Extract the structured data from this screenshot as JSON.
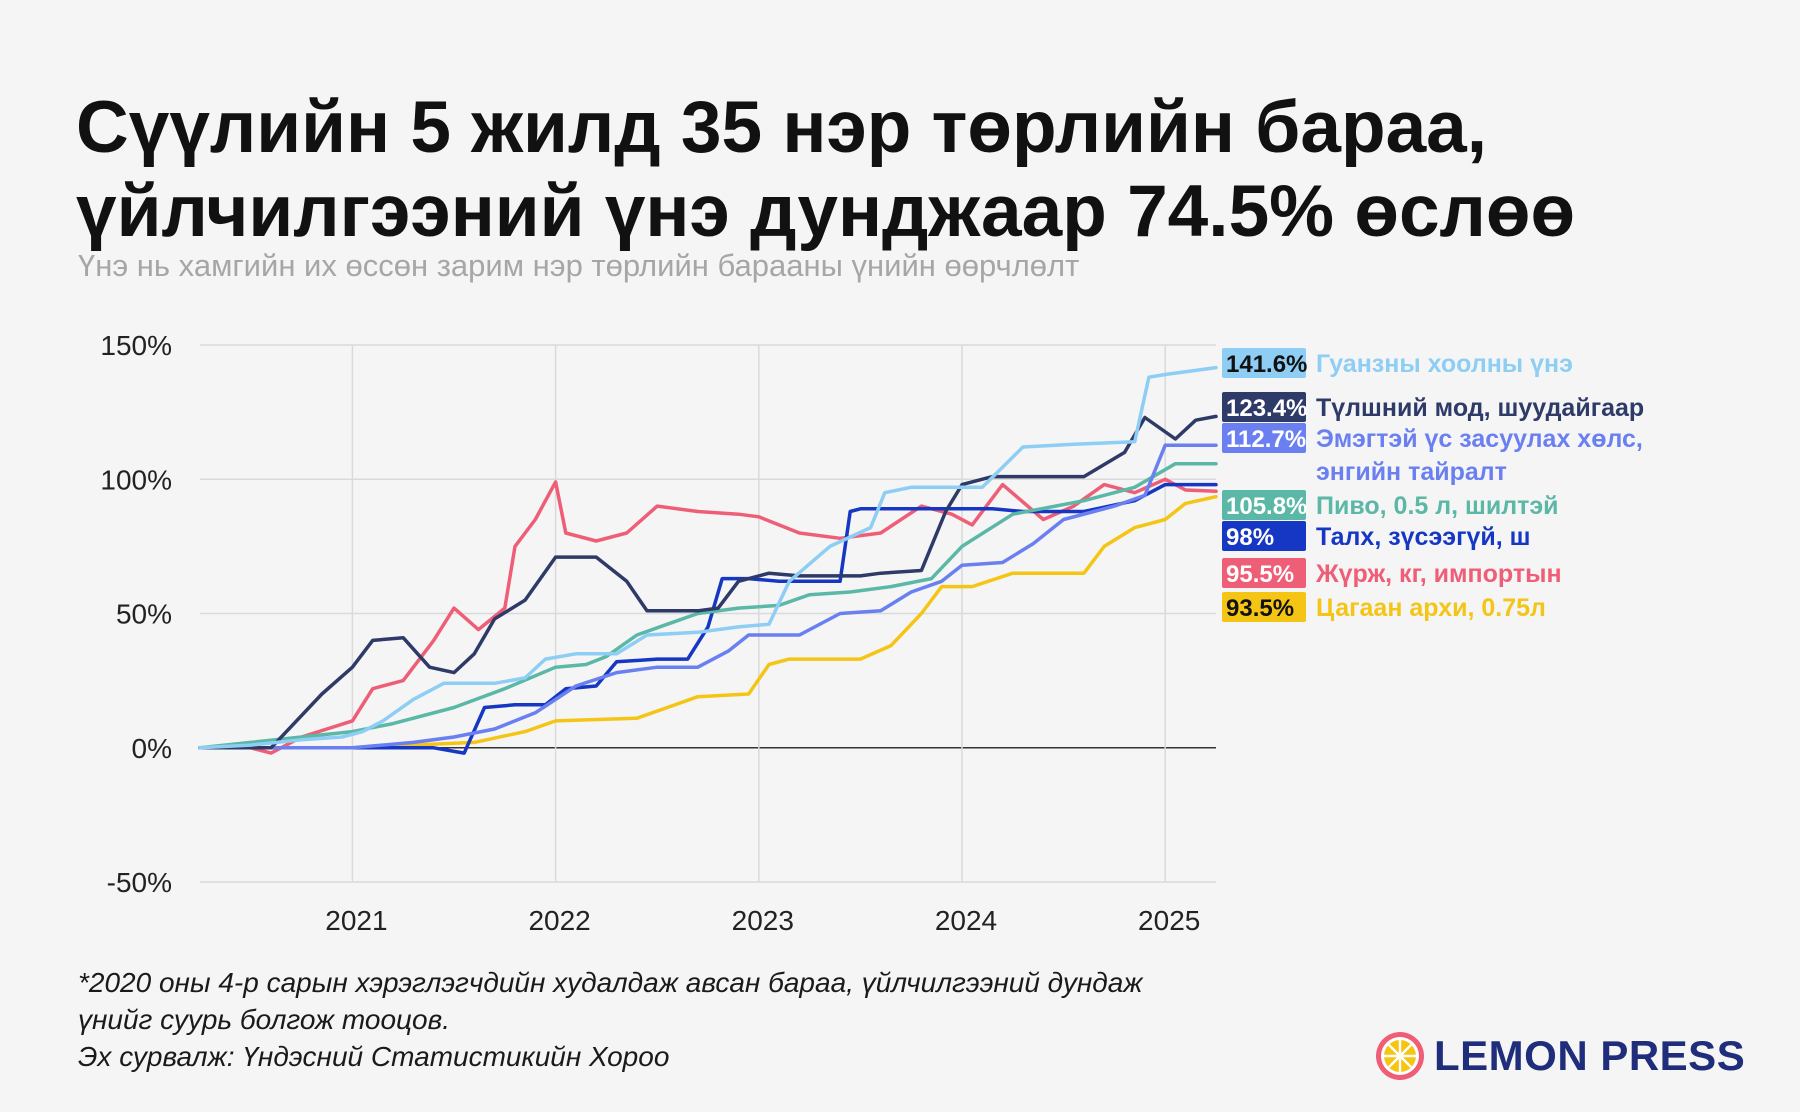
{
  "title_line1": "Сүүлийн 5 жилд 35 нэр төрлийн бараа,",
  "title_line2": "үйлчилгээний үнэ дунджаар 74.5% өслөө",
  "subtitle": "Үнэ нь хамгийн их өссөн зарим нэр төрлийн барааны үнийн өөрчлөлт",
  "footnote_line1": "*2020 оны 4-р сарын хэрэглэгчдийн худалдаж авсан бараа, үйлчилгээний дундаж",
  "footnote_line2": "үнийг суурь болгож тооцов.",
  "source": "Эх сурвалж: Үндэсний Статистикийн Хороо",
  "logo_text": "LEMON PRESS",
  "chart_data": {
    "type": "line",
    "title": "",
    "xlabel": "",
    "ylabel": "",
    "xlim": [
      2020.25,
      2025.25
    ],
    "ylim": [
      -50,
      150
    ],
    "y_ticks": [
      150,
      100,
      50,
      0,
      -50
    ],
    "y_tick_labels": [
      "150%",
      "100%",
      "50%",
      "0%",
      "-50%"
    ],
    "x_ticks": [
      2021,
      2022,
      2023,
      2024,
      2025
    ],
    "x_tick_labels": [
      "2021",
      "2022",
      "2023",
      "2024",
      "2025"
    ],
    "grid": true,
    "legend": "right, end-of-line labels",
    "series": [
      {
        "name": "Гуанзны хоолны үнэ",
        "end_label": "141.6%",
        "color": "#8ecdf4",
        "points": [
          [
            2020.25,
            0
          ],
          [
            2020.5,
            1
          ],
          [
            2020.75,
            3
          ],
          [
            2020.95,
            4
          ],
          [
            2021.05,
            6
          ],
          [
            2021.15,
            10
          ],
          [
            2021.3,
            18
          ],
          [
            2021.45,
            24
          ],
          [
            2021.7,
            24
          ],
          [
            2021.85,
            26
          ],
          [
            2021.95,
            33
          ],
          [
            2022.1,
            35
          ],
          [
            2022.3,
            35
          ],
          [
            2022.45,
            42
          ],
          [
            2022.7,
            43
          ],
          [
            2022.9,
            45
          ],
          [
            2023.05,
            46
          ],
          [
            2023.15,
            62
          ],
          [
            2023.35,
            75
          ],
          [
            2023.55,
            82
          ],
          [
            2023.62,
            95
          ],
          [
            2023.75,
            97
          ],
          [
            2024.1,
            97
          ],
          [
            2024.3,
            112
          ],
          [
            2024.55,
            113
          ],
          [
            2024.85,
            114
          ],
          [
            2024.92,
            138
          ],
          [
            2025.0,
            139
          ],
          [
            2025.25,
            141.6
          ]
        ]
      },
      {
        "name": "Түлшний мод, шуудайгаар",
        "end_label": "123.4%",
        "color": "#2e3a67",
        "points": [
          [
            2020.25,
            0
          ],
          [
            2020.6,
            0
          ],
          [
            2020.7,
            8
          ],
          [
            2020.85,
            20
          ],
          [
            2021.0,
            30
          ],
          [
            2021.1,
            40
          ],
          [
            2021.25,
            41
          ],
          [
            2021.38,
            30
          ],
          [
            2021.5,
            28
          ],
          [
            2021.6,
            35
          ],
          [
            2021.7,
            48
          ],
          [
            2021.85,
            55
          ],
          [
            2022.0,
            71
          ],
          [
            2022.2,
            71
          ],
          [
            2022.35,
            62
          ],
          [
            2022.45,
            51
          ],
          [
            2022.7,
            51
          ],
          [
            2022.8,
            52
          ],
          [
            2022.9,
            62
          ],
          [
            2023.05,
            65
          ],
          [
            2023.2,
            64
          ],
          [
            2023.5,
            64
          ],
          [
            2023.6,
            65
          ],
          [
            2023.8,
            66
          ],
          [
            2023.92,
            88
          ],
          [
            2024.0,
            98
          ],
          [
            2024.15,
            101
          ],
          [
            2024.6,
            101
          ],
          [
            2024.8,
            110
          ],
          [
            2024.9,
            123
          ],
          [
            2025.05,
            115
          ],
          [
            2025.15,
            122
          ],
          [
            2025.25,
            123.4
          ]
        ]
      },
      {
        "name": "Эмэгтэй үс засуулах хөлс, энгийн тайралт",
        "end_label": "112.7%",
        "color": "#6a7ff0",
        "points": [
          [
            2020.25,
            0
          ],
          [
            2021.0,
            0
          ],
          [
            2021.3,
            2
          ],
          [
            2021.5,
            4
          ],
          [
            2021.7,
            7
          ],
          [
            2021.9,
            13
          ],
          [
            2022.1,
            23
          ],
          [
            2022.3,
            28
          ],
          [
            2022.5,
            30
          ],
          [
            2022.7,
            30
          ],
          [
            2022.85,
            36
          ],
          [
            2022.95,
            42
          ],
          [
            2023.2,
            42
          ],
          [
            2023.4,
            50
          ],
          [
            2023.6,
            51
          ],
          [
            2023.75,
            58
          ],
          [
            2023.9,
            62
          ],
          [
            2024.0,
            68
          ],
          [
            2024.2,
            69
          ],
          [
            2024.35,
            76
          ],
          [
            2024.5,
            85
          ],
          [
            2024.75,
            90
          ],
          [
            2024.9,
            94
          ],
          [
            2025.0,
            112.7
          ],
          [
            2025.25,
            112.7
          ]
        ]
      },
      {
        "name": "Пиво, 0.5 л, шилтэй",
        "end_label": "105.8%",
        "color": "#5bb8a6",
        "points": [
          [
            2020.25,
            0
          ],
          [
            2020.5,
            2
          ],
          [
            2020.75,
            4
          ],
          [
            2021.0,
            6
          ],
          [
            2021.2,
            9
          ],
          [
            2021.5,
            15
          ],
          [
            2021.75,
            22
          ],
          [
            2022.0,
            30
          ],
          [
            2022.15,
            31
          ],
          [
            2022.25,
            34
          ],
          [
            2022.4,
            42
          ],
          [
            2022.55,
            46
          ],
          [
            2022.7,
            50
          ],
          [
            2022.9,
            52
          ],
          [
            2023.1,
            53
          ],
          [
            2023.25,
            57
          ],
          [
            2023.45,
            58
          ],
          [
            2023.65,
            60
          ],
          [
            2023.85,
            63
          ],
          [
            2024.0,
            75
          ],
          [
            2024.25,
            87
          ],
          [
            2024.6,
            92
          ],
          [
            2024.85,
            97
          ],
          [
            2025.05,
            105.8
          ],
          [
            2025.25,
            105.8
          ]
        ]
      },
      {
        "name": "Талх, зүсээгүй, ш",
        "end_label": "98%",
        "color": "#1537c4",
        "points": [
          [
            2020.25,
            0
          ],
          [
            2021.0,
            0
          ],
          [
            2021.4,
            0
          ],
          [
            2021.55,
            -2
          ],
          [
            2021.65,
            15
          ],
          [
            2021.8,
            16
          ],
          [
            2021.95,
            16
          ],
          [
            2022.05,
            22
          ],
          [
            2022.2,
            23
          ],
          [
            2022.3,
            32
          ],
          [
            2022.5,
            33
          ],
          [
            2022.65,
            33
          ],
          [
            2022.75,
            45
          ],
          [
            2022.82,
            63
          ],
          [
            2022.95,
            63
          ],
          [
            2023.1,
            62
          ],
          [
            2023.4,
            62
          ],
          [
            2023.45,
            88
          ],
          [
            2023.5,
            89
          ],
          [
            2024.15,
            89
          ],
          [
            2024.3,
            88
          ],
          [
            2024.6,
            88
          ],
          [
            2024.85,
            92
          ],
          [
            2025.0,
            98
          ],
          [
            2025.25,
            98
          ]
        ]
      },
      {
        "name": "Жүрж, кг, импортын",
        "end_label": "95.5%",
        "color": "#ef5e77",
        "points": [
          [
            2020.25,
            0
          ],
          [
            2020.5,
            0
          ],
          [
            2020.6,
            -2
          ],
          [
            2020.75,
            4
          ],
          [
            2021.0,
            10
          ],
          [
            2021.1,
            22
          ],
          [
            2021.25,
            25
          ],
          [
            2021.4,
            40
          ],
          [
            2021.5,
            52
          ],
          [
            2021.62,
            44
          ],
          [
            2021.75,
            52
          ],
          [
            2021.8,
            75
          ],
          [
            2021.9,
            85
          ],
          [
            2022.0,
            99
          ],
          [
            2022.05,
            80
          ],
          [
            2022.2,
            77
          ],
          [
            2022.35,
            80
          ],
          [
            2022.5,
            90
          ],
          [
            2022.7,
            88
          ],
          [
            2022.9,
            87
          ],
          [
            2023.0,
            86
          ],
          [
            2023.2,
            80
          ],
          [
            2023.4,
            78
          ],
          [
            2023.6,
            80
          ],
          [
            2023.8,
            90
          ],
          [
            2023.95,
            87
          ],
          [
            2024.05,
            83
          ],
          [
            2024.2,
            98
          ],
          [
            2024.4,
            85
          ],
          [
            2024.55,
            90
          ],
          [
            2024.7,
            98
          ],
          [
            2024.85,
            95
          ],
          [
            2025.0,
            100
          ],
          [
            2025.1,
            96
          ],
          [
            2025.25,
            95.5
          ]
        ]
      },
      {
        "name": "Цагаан архи, 0.75л",
        "end_label": "93.5%",
        "color": "#f5c516",
        "points": [
          [
            2020.25,
            0
          ],
          [
            2021.0,
            0
          ],
          [
            2021.6,
            2
          ],
          [
            2021.85,
            6
          ],
          [
            2022.0,
            10
          ],
          [
            2022.4,
            11
          ],
          [
            2022.55,
            15
          ],
          [
            2022.7,
            19
          ],
          [
            2022.95,
            20
          ],
          [
            2023.05,
            31
          ],
          [
            2023.15,
            33
          ],
          [
            2023.5,
            33
          ],
          [
            2023.65,
            38
          ],
          [
            2023.8,
            50
          ],
          [
            2023.9,
            60
          ],
          [
            2024.05,
            60
          ],
          [
            2024.25,
            65
          ],
          [
            2024.6,
            65
          ],
          [
            2024.7,
            75
          ],
          [
            2024.85,
            82
          ],
          [
            2025.0,
            85
          ],
          [
            2025.1,
            91
          ],
          [
            2025.25,
            93.5
          ]
        ]
      }
    ]
  }
}
